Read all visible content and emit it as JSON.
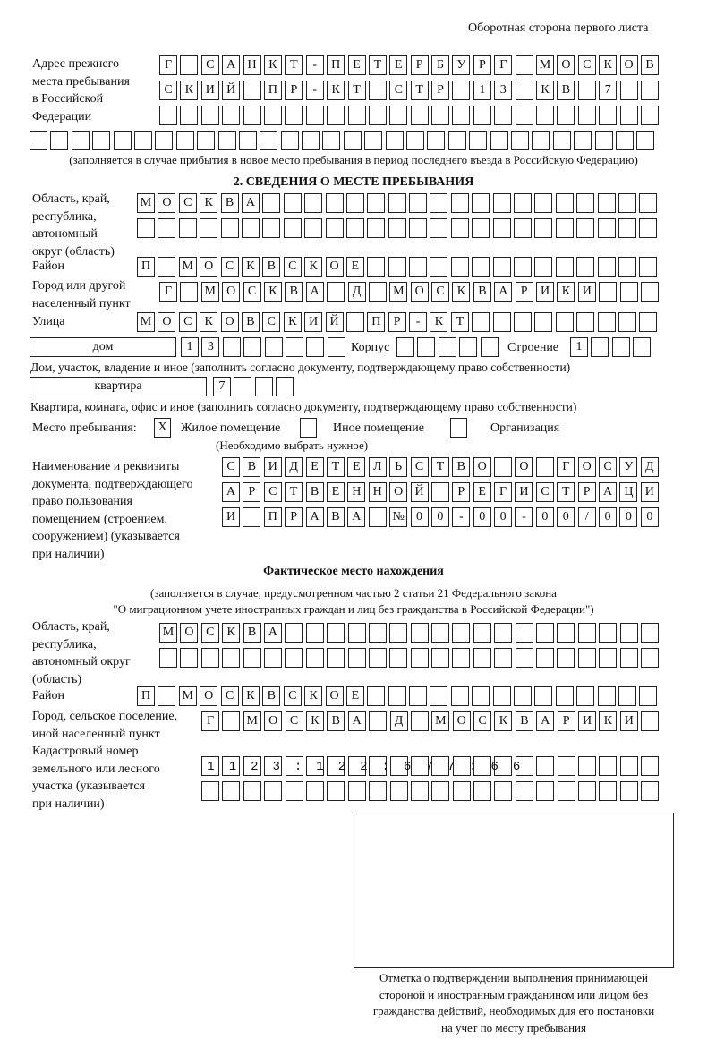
{
  "header": "Оборотная сторона первого листа",
  "prev_address": {
    "label": [
      "Адрес прежнего",
      "места пребывания",
      "в Российской",
      "Федерации"
    ],
    "rows": [
      "Г САНКТ-ПЕТЕРБУРГ МОСКОВ",
      "СКИЙ ПР-КТ СТР 13 КВ 7",
      "",
      ""
    ],
    "note": "(заполняется в случае прибытия в новое место пребывания в период последнего въезда в Российскую Федерацию)"
  },
  "section2": {
    "title": "2. СВЕДЕНИЯ О МЕСТЕ ПРЕБЫВАНИЯ",
    "region_label": [
      "Область, край,",
      "республика,",
      "автономный",
      "округ (область)"
    ],
    "region_rows": [
      "МОСКВА",
      ""
    ],
    "district_label": "Район",
    "district": "П МОСКВСКОЕ",
    "city_label": [
      "Город или другой",
      "населенный пункт"
    ],
    "city": "Г МОСКВА Д МОСКВАРИКИ",
    "street_label": "Улица",
    "street": "МОСКОВСКИЙ ПР-КТ",
    "house_type": "дом",
    "house": "13",
    "korpus_label": "Корпус",
    "korpus": "",
    "building_label": "Строение",
    "building": "1",
    "house_note": "Дом, участок, владение и иное (заполнить согласно документу, подтверждающему право собственности)",
    "flat_type": "квартира",
    "flat": "7",
    "flat_note": "Квартира, комната, офис и иное (заполнить согласно документу, подтверждающему право собственности)",
    "stay_label": "Место пребывания:",
    "options": [
      {
        "label": "Жилое помещение",
        "mark": "X"
      },
      {
        "label": "Иное помещение",
        "mark": ""
      },
      {
        "label": "Организация",
        "mark": ""
      }
    ],
    "options_note": "(Необходимо выбрать нужное)",
    "doc_label": [
      "Наименование и реквизиты",
      "документа, подтверждающего",
      "право пользования",
      "помещением (строением,",
      "сооружением) (указывается",
      "при наличии)"
    ],
    "doc_rows": [
      "СВИДЕТЕЛЬСТВО О ГОСУД",
      "АРСТВЕННОЙ РЕГИСТРАЦИ",
      "И ПРАВА №00-00-00/000"
    ]
  },
  "actual": {
    "title": "Фактическое место нахождения",
    "note": [
      "(заполняется в случае, предусмотренном частью 2 статьи 21 Федерального закона",
      "\"О миграционном учете иностранных граждан и лиц без гражданства в Российской Федерации\")"
    ],
    "region_label": [
      "Область, край,",
      "республика,",
      "автономный округ",
      "(область)"
    ],
    "region_rows": [
      "МОСКВА",
      ""
    ],
    "district_label": "Район",
    "district": "П МОСКВСКОЕ",
    "city_label": [
      "Город, сельское поселение,",
      "иной населенный пункт"
    ],
    "city": "Г МОСКВА Д МОСКВАРИКИ",
    "cadastre_label": [
      "Кадастровый номер",
      "земельного или лесного",
      "участка (указывается",
      "при наличии)"
    ],
    "cadastre_rows": [
      "1123:122:677:66",
      ""
    ]
  },
  "stamp_caption": [
    "Отметка о подтверждении выполнения принимающей",
    "стороной и иностранным гражданином или лицом без",
    "гражданства действий, необходимых для его постановки",
    "на учет по месту пребывания"
  ]
}
